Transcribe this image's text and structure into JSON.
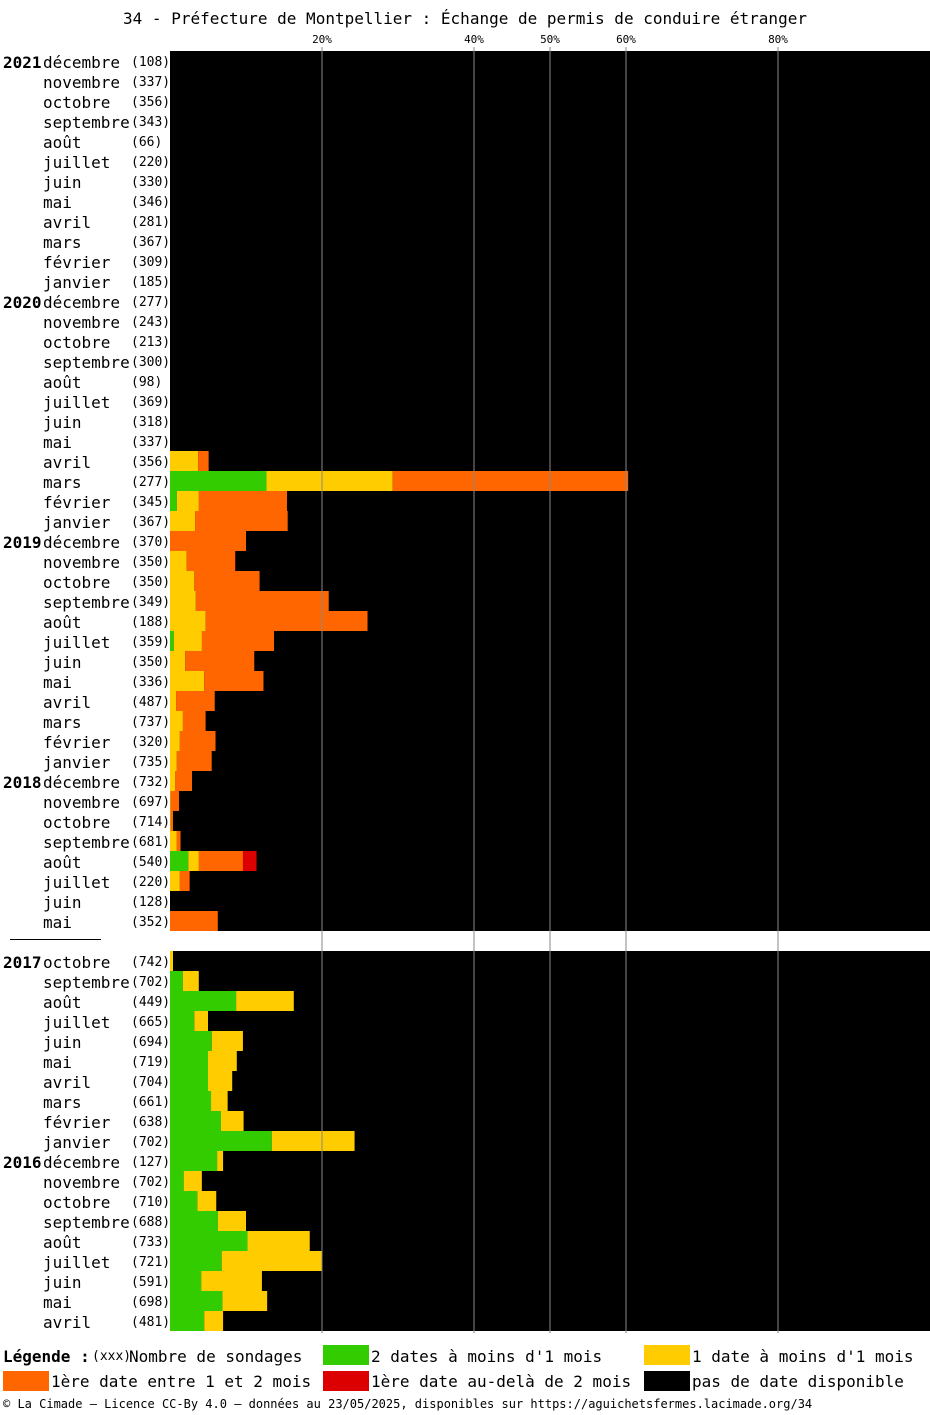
{
  "title": "34 - Préfecture de Montpellier : Échange de permis de conduire étranger",
  "chart_data": {
    "type": "bar",
    "orientation": "horizontal-stacked",
    "x_unit": "%",
    "xlim": [
      0,
      100
    ],
    "ticks": [
      {
        "value": 20,
        "label": "20%"
      },
      {
        "value": 40,
        "label": "40%"
      },
      {
        "value": 50,
        "label": "50%"
      },
      {
        "value": 60,
        "label": "60%"
      },
      {
        "value": 80,
        "label": "80%"
      }
    ],
    "series_keys": [
      "green",
      "yellow",
      "orange",
      "red",
      "black"
    ],
    "groups": [
      {
        "rows": [
          {
            "year": "2021",
            "month": "décembre",
            "count": "(108)",
            "values": [
              0,
              0,
              0,
              0,
              100
            ]
          },
          {
            "year": "",
            "month": "novembre",
            "count": "(337)",
            "values": [
              0,
              0,
              0,
              0,
              100
            ]
          },
          {
            "year": "",
            "month": "octobre",
            "count": "(356)",
            "values": [
              0,
              0,
              0,
              0,
              100
            ]
          },
          {
            "year": "",
            "month": "septembre",
            "count": "(343)",
            "values": [
              0,
              0,
              0,
              0,
              100
            ]
          },
          {
            "year": "",
            "month": "août",
            "count": "(66)",
            "values": [
              0,
              0,
              0,
              0,
              100
            ]
          },
          {
            "year": "",
            "month": "juillet",
            "count": "(220)",
            "values": [
              0,
              0,
              0,
              0,
              100
            ]
          },
          {
            "year": "",
            "month": "juin",
            "count": "(330)",
            "values": [
              0,
              0,
              0,
              0,
              100
            ]
          },
          {
            "year": "",
            "month": "mai",
            "count": "(346)",
            "values": [
              0,
              0,
              0,
              0,
              100
            ]
          },
          {
            "year": "",
            "month": "avril",
            "count": "(281)",
            "values": [
              0,
              0,
              0,
              0,
              100
            ]
          },
          {
            "year": "",
            "month": "mars",
            "count": "(367)",
            "values": [
              0,
              0,
              0,
              0,
              100
            ]
          },
          {
            "year": "",
            "month": "février",
            "count": "(309)",
            "values": [
              0,
              0,
              0,
              0,
              100
            ]
          },
          {
            "year": "",
            "month": "janvier",
            "count": "(185)",
            "values": [
              0,
              0,
              0,
              0,
              100
            ]
          },
          {
            "year": "2020",
            "month": "décembre",
            "count": "(277)",
            "values": [
              0,
              0,
              0,
              0,
              100
            ]
          },
          {
            "year": "",
            "month": "novembre",
            "count": "(243)",
            "values": [
              0,
              0,
              0,
              0,
              100
            ]
          },
          {
            "year": "",
            "month": "octobre",
            "count": "(213)",
            "values": [
              0,
              0,
              0,
              0,
              100
            ]
          },
          {
            "year": "",
            "month": "septembre",
            "count": "(300)",
            "values": [
              0,
              0,
              0,
              0,
              100
            ]
          },
          {
            "year": "",
            "month": "août",
            "count": "(98)",
            "values": [
              0,
              0,
              0,
              0,
              100
            ]
          },
          {
            "year": "",
            "month": "juillet",
            "count": "(369)",
            "values": [
              0,
              0,
              0,
              0,
              100
            ]
          },
          {
            "year": "",
            "month": "juin",
            "count": "(318)",
            "values": [
              0,
              0,
              0,
              0,
              100
            ]
          },
          {
            "year": "",
            "month": "mai",
            "count": "(337)",
            "values": [
              0,
              0,
              0,
              0,
              100
            ]
          },
          {
            "year": "",
            "month": "avril",
            "count": "(356)",
            "values": [
              0,
              3.7,
              1.4,
              0,
              94.9
            ]
          },
          {
            "year": "",
            "month": "mars",
            "count": "(277)",
            "values": [
              12.7,
              16.6,
              31.0,
              0,
              39.7
            ]
          },
          {
            "year": "",
            "month": "février",
            "count": "(345)",
            "values": [
              0.9,
              2.9,
              11.6,
              0,
              84.6
            ]
          },
          {
            "year": "",
            "month": "janvier",
            "count": "(367)",
            "values": [
              0,
              3.3,
              12.2,
              0,
              84.5
            ]
          },
          {
            "year": "2019",
            "month": "décembre",
            "count": "(370)",
            "values": [
              0,
              0,
              10.0,
              0,
              90.0
            ]
          },
          {
            "year": "",
            "month": "novembre",
            "count": "(350)",
            "values": [
              0,
              2.2,
              6.4,
              0,
              91.4
            ]
          },
          {
            "year": "",
            "month": "octobre",
            "count": "(350)",
            "values": [
              0,
              3.2,
              8.6,
              0,
              88.2
            ]
          },
          {
            "year": "",
            "month": "septembre",
            "count": "(349)",
            "values": [
              0,
              3.4,
              17.5,
              0,
              79.1
            ]
          },
          {
            "year": "",
            "month": "août",
            "count": "(188)",
            "values": [
              0,
              4.7,
              21.3,
              0,
              74.0
            ]
          },
          {
            "year": "",
            "month": "juillet",
            "count": "(359)",
            "values": [
              0.5,
              3.7,
              9.5,
              0,
              86.3
            ]
          },
          {
            "year": "",
            "month": "juin",
            "count": "(350)",
            "values": [
              0,
              2.0,
              9.1,
              0,
              88.9
            ]
          },
          {
            "year": "",
            "month": "mai",
            "count": "(336)",
            "values": [
              0,
              4.5,
              7.8,
              0,
              87.7
            ]
          },
          {
            "year": "",
            "month": "avril",
            "count": "(487)",
            "values": [
              0,
              0.8,
              5.1,
              0,
              94.1
            ]
          },
          {
            "year": "",
            "month": "mars",
            "count": "(737)",
            "values": [
              0,
              1.7,
              3.0,
              0,
              95.3
            ]
          },
          {
            "year": "",
            "month": "février",
            "count": "(320)",
            "values": [
              0,
              1.3,
              4.7,
              0,
              94.0
            ]
          },
          {
            "year": "",
            "month": "janvier",
            "count": "(735)",
            "values": [
              0,
              0.9,
              4.6,
              0,
              94.5
            ]
          },
          {
            "year": "2018",
            "month": "décembre",
            "count": "(732)",
            "values": [
              0,
              0.7,
              2.2,
              0,
              97.1
            ]
          },
          {
            "year": "",
            "month": "novembre",
            "count": "(697)",
            "values": [
              0,
              0.1,
              1.1,
              0,
              98.8
            ]
          },
          {
            "year": "",
            "month": "octobre",
            "count": "(714)",
            "values": [
              0,
              0.1,
              0.3,
              0,
              99.6
            ]
          },
          {
            "year": "",
            "month": "septembre",
            "count": "(681)",
            "values": [
              0,
              0.9,
              0.5,
              0,
              98.6
            ]
          },
          {
            "year": "",
            "month": "août",
            "count": "(540)",
            "values": [
              2.4,
              1.4,
              5.8,
              1.8,
              88.6
            ]
          },
          {
            "year": "",
            "month": "juillet",
            "count": "(220)",
            "values": [
              0,
              1.3,
              1.3,
              0,
              97.4
            ]
          },
          {
            "year": "",
            "month": "juin",
            "count": "(128)",
            "values": [
              0,
              0,
              0,
              0,
              100
            ]
          },
          {
            "year": "",
            "month": "mai",
            "count": "(352)",
            "values": [
              0,
              0,
              6.3,
              0,
              93.7
            ]
          }
        ]
      },
      {
        "rows": [
          {
            "year": "2017",
            "month": "octobre",
            "count": "(742)",
            "values": [
              0,
              0.4,
              0,
              0,
              99.6
            ]
          },
          {
            "year": "",
            "month": "septembre",
            "count": "(702)",
            "values": [
              1.7,
              2.1,
              0,
              0,
              96.2
            ]
          },
          {
            "year": "",
            "month": "août",
            "count": "(449)",
            "values": [
              8.7,
              7.6,
              0,
              0,
              83.7
            ]
          },
          {
            "year": "",
            "month": "juillet",
            "count": "(665)",
            "values": [
              3.2,
              1.8,
              0,
              0,
              95.0
            ]
          },
          {
            "year": "",
            "month": "juin",
            "count": "(694)",
            "values": [
              5.5,
              4.1,
              0,
              0,
              90.4
            ]
          },
          {
            "year": "",
            "month": "mai",
            "count": "(719)",
            "values": [
              5.0,
              3.8,
              0,
              0,
              91.2
            ]
          },
          {
            "year": "",
            "month": "avril",
            "count": "(704)",
            "values": [
              5.0,
              3.2,
              0,
              0,
              91.8
            ]
          },
          {
            "year": "",
            "month": "mars",
            "count": "(661)",
            "values": [
              5.4,
              2.2,
              0,
              0,
              92.4
            ]
          },
          {
            "year": "",
            "month": "février",
            "count": "(638)",
            "values": [
              6.7,
              3.0,
              0,
              0,
              90.3
            ]
          },
          {
            "year": "",
            "month": "janvier",
            "count": "(702)",
            "values": [
              13.4,
              10.9,
              0,
              0,
              75.7
            ]
          },
          {
            "year": "2016",
            "month": "décembre",
            "count": "(127)",
            "values": [
              6.2,
              0.8,
              0,
              0,
              93.0
            ]
          },
          {
            "year": "",
            "month": "novembre",
            "count": "(702)",
            "values": [
              1.8,
              2.4,
              0,
              0,
              95.8
            ]
          },
          {
            "year": "",
            "month": "octobre",
            "count": "(710)",
            "values": [
              3.6,
              2.5,
              0,
              0,
              93.9
            ]
          },
          {
            "year": "",
            "month": "septembre",
            "count": "(688)",
            "values": [
              6.3,
              3.7,
              0,
              0,
              90.0
            ]
          },
          {
            "year": "",
            "month": "août",
            "count": "(733)",
            "values": [
              10.2,
              8.2,
              0,
              0,
              81.6
            ]
          },
          {
            "year": "",
            "month": "juillet",
            "count": "(721)",
            "values": [
              6.8,
              13.2,
              0,
              0,
              80.0
            ]
          },
          {
            "year": "",
            "month": "juin",
            "count": "(591)",
            "values": [
              4.1,
              8.0,
              0,
              0,
              87.9
            ]
          },
          {
            "year": "",
            "month": "mai",
            "count": "(698)",
            "values": [
              6.9,
              5.9,
              0,
              0,
              87.2
            ]
          },
          {
            "year": "",
            "month": "avril",
            "count": "(481)",
            "values": [
              4.5,
              2.5,
              0,
              0,
              93.0
            ]
          }
        ]
      }
    ]
  },
  "colors": {
    "green": "#33cc00",
    "yellow": "#ffcc00",
    "orange": "#ff6600",
    "red": "#dd0000",
    "black": "#000000"
  },
  "legend": {
    "title": "Légende :",
    "count_marker": "(xxx)",
    "count_label": "Nombre de sondages",
    "items": [
      {
        "key": "green",
        "label": "2 dates à moins d'1 mois"
      },
      {
        "key": "yellow",
        "label": "1 date à moins d'1 mois"
      },
      {
        "key": "orange",
        "label": "1ère date entre 1 et 2 mois"
      },
      {
        "key": "red",
        "label": "1ère date au-delà de 2 mois"
      },
      {
        "key": "black",
        "label": "pas de date disponible"
      }
    ]
  },
  "footer": "© La Cimade — Licence CC-By 4.0 — données au 23/05/2025, disponibles sur https://aguichetsfermes.lacimade.org/34"
}
